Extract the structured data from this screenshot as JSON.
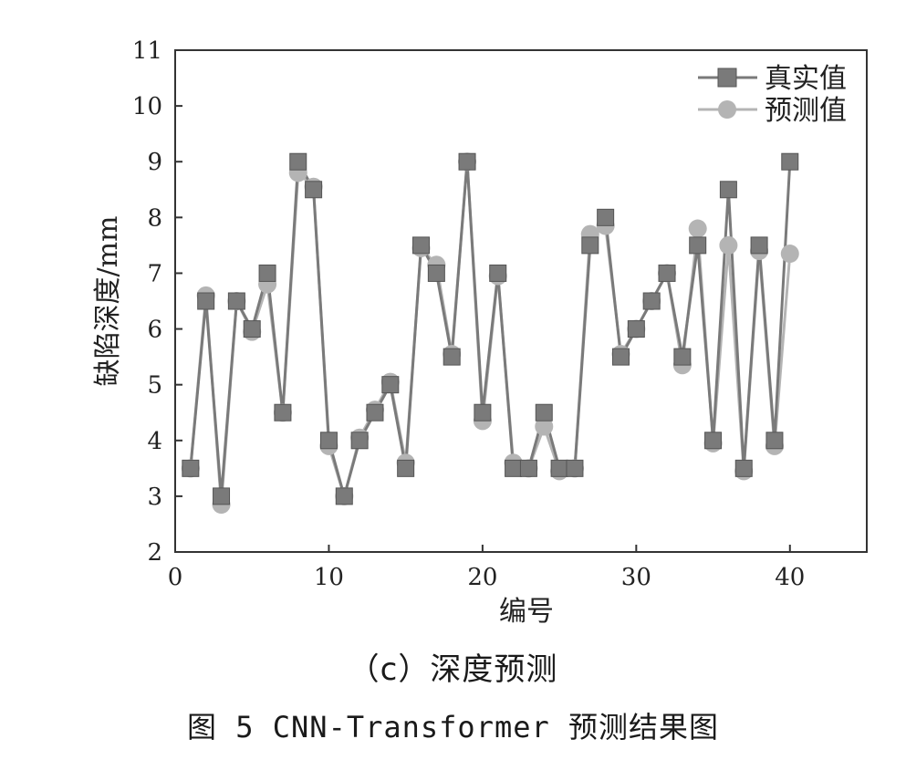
{
  "chart_data": {
    "type": "line",
    "xlabel": "编号",
    "ylabel": "缺陷深度/mm",
    "xlim": [
      0,
      45
    ],
    "ylim": [
      2,
      11
    ],
    "xticks": [
      "0",
      "10",
      "20",
      "30",
      "40"
    ],
    "yticks": [
      "2",
      "3",
      "4",
      "5",
      "6",
      "7",
      "8",
      "9",
      "10",
      "11"
    ],
    "grid": false,
    "legend_position": "top-right",
    "x": [
      1,
      2,
      3,
      4,
      5,
      6,
      7,
      8,
      9,
      10,
      11,
      12,
      13,
      14,
      15,
      16,
      17,
      18,
      19,
      20,
      21,
      22,
      23,
      24,
      25,
      26,
      27,
      28,
      29,
      30,
      31,
      32,
      33,
      34,
      35,
      36,
      37,
      38,
      39,
      40
    ],
    "series": [
      {
        "name": "真实值",
        "marker": "square",
        "color": "#7a7a7a",
        "values": [
          3.5,
          6.5,
          3.0,
          6.5,
          6.0,
          7.0,
          4.5,
          9.0,
          8.5,
          4.0,
          3.0,
          4.0,
          4.5,
          5.0,
          3.5,
          7.5,
          7.0,
          5.5,
          9.0,
          4.5,
          7.0,
          3.5,
          3.5,
          4.5,
          3.5,
          3.5,
          7.5,
          8.0,
          5.5,
          6.0,
          6.5,
          7.0,
          5.5,
          7.5,
          4.0,
          8.5,
          3.5,
          7.5,
          4.0,
          9.0
        ]
      },
      {
        "name": "预测值",
        "marker": "circle",
        "color": "#b4b4b4",
        "values": [
          3.5,
          6.6,
          2.85,
          6.5,
          5.95,
          6.8,
          4.5,
          8.8,
          8.55,
          3.9,
          3.0,
          4.05,
          4.55,
          5.05,
          3.6,
          7.45,
          7.15,
          5.55,
          9.0,
          4.35,
          6.95,
          3.6,
          3.5,
          4.25,
          3.45,
          3.5,
          7.7,
          7.85,
          5.55,
          6.0,
          6.5,
          7.0,
          5.35,
          7.8,
          3.95,
          7.5,
          3.45,
          7.4,
          3.9,
          7.35
        ]
      }
    ]
  },
  "captions": {
    "sub": "（c）深度预测",
    "figure": "图 5  CNN-Transformer 预测结果图"
  }
}
